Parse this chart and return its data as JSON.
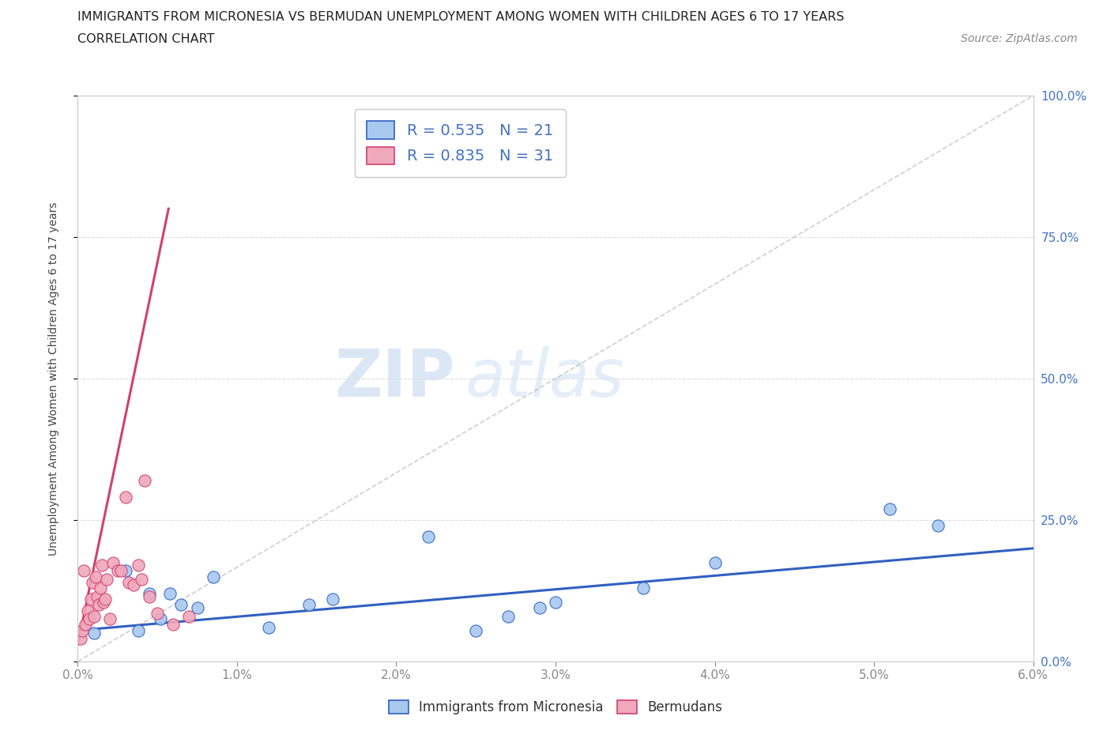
{
  "title_line1": "IMMIGRANTS FROM MICRONESIA VS BERMUDAN UNEMPLOYMENT AMONG WOMEN WITH CHILDREN AGES 6 TO 17 YEARS",
  "title_line2": "CORRELATION CHART",
  "source_text": "Source: ZipAtlas.com",
  "xlabel_ticks": [
    "0.0%",
    "1.0%",
    "2.0%",
    "3.0%",
    "4.0%",
    "5.0%",
    "6.0%"
  ],
  "ylabel_ticks": [
    "0.0%",
    "25.0%",
    "50.0%",
    "75.0%",
    "100.0%"
  ],
  "xlim": [
    0.0,
    6.0
  ],
  "ylim": [
    0.0,
    100.0
  ],
  "watermark_zip": "ZIP",
  "watermark_atlas": "atlas",
  "legend_blue_r": "0.535",
  "legend_blue_n": "21",
  "legend_pink_r": "0.835",
  "legend_pink_n": "31",
  "blue_color": "#A8C8F0",
  "pink_color": "#F0A8BC",
  "blue_line_color": "#3060C0",
  "pink_line_color": "#D04070",
  "blue_scatter_x": [
    0.1,
    0.3,
    0.38,
    0.45,
    0.52,
    0.58,
    0.65,
    0.75,
    0.85,
    1.2,
    1.45,
    1.6,
    2.2,
    2.5,
    2.7,
    2.9,
    3.0,
    3.55,
    4.0,
    5.1,
    5.4
  ],
  "blue_scatter_y": [
    5.0,
    16.0,
    5.5,
    12.0,
    7.5,
    12.0,
    10.0,
    9.5,
    15.0,
    6.0,
    10.0,
    11.0,
    22.0,
    5.5,
    8.0,
    9.5,
    10.5,
    13.0,
    17.5,
    27.0,
    24.0
  ],
  "pink_scatter_x": [
    0.02,
    0.03,
    0.04,
    0.05,
    0.06,
    0.07,
    0.08,
    0.09,
    0.1,
    0.11,
    0.12,
    0.13,
    0.14,
    0.15,
    0.16,
    0.17,
    0.18,
    0.2,
    0.22,
    0.25,
    0.27,
    0.3,
    0.32,
    0.35,
    0.38,
    0.4,
    0.42,
    0.45,
    0.5,
    0.6,
    0.7
  ],
  "pink_scatter_y": [
    4.0,
    5.5,
    16.0,
    6.5,
    9.0,
    7.5,
    11.0,
    14.0,
    8.0,
    15.0,
    11.5,
    10.0,
    13.0,
    17.0,
    10.5,
    11.0,
    14.5,
    7.5,
    17.5,
    16.0,
    16.0,
    29.0,
    14.0,
    13.5,
    17.0,
    14.5,
    32.0,
    11.5,
    8.5,
    6.5,
    8.0
  ],
  "blue_trend_x": [
    0.0,
    6.0
  ],
  "blue_trend_y": [
    5.5,
    20.0
  ],
  "pink_trend_x": [
    0.0,
    0.57
  ],
  "pink_trend_y": [
    3.0,
    80.0
  ],
  "diag_line_x": [
    0.0,
    6.0
  ],
  "diag_line_y": [
    0.0,
    100.0
  ],
  "grid_color": "#DDDDDD",
  "spine_color": "#CCCCCC"
}
